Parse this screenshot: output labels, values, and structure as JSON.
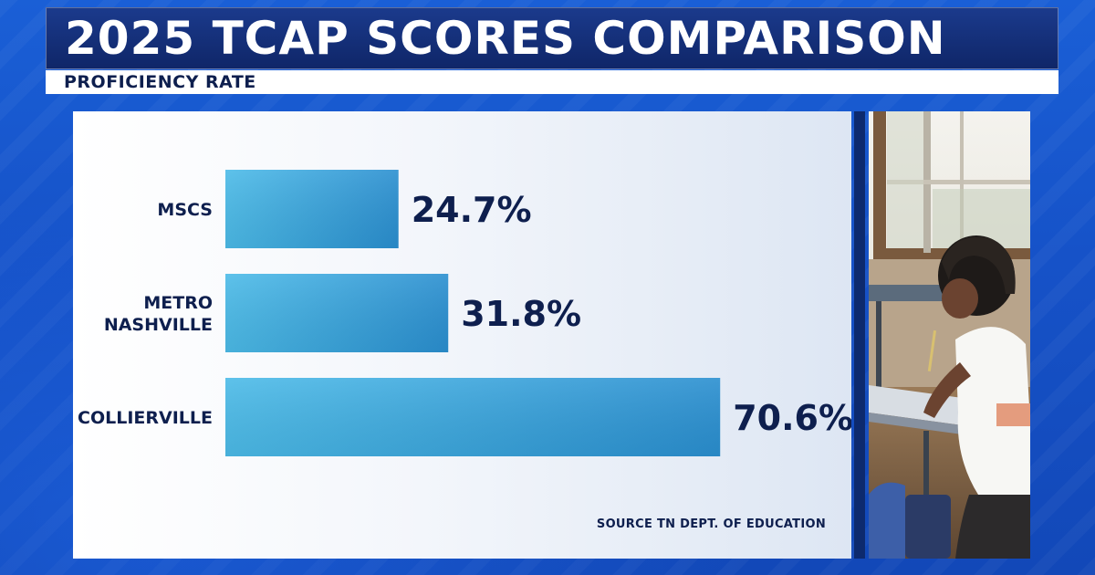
{
  "header": {
    "title": "2025 TCAP SCORES COMPARISON",
    "subtitle": "PROFICIENCY RATE"
  },
  "source": "SOURCE TN DEPT. OF EDUCATION",
  "colors": {
    "bar_start": "#4cbbe8",
    "bar_end": "#2a8fd0",
    "text_dark": "#0e1f4e",
    "title_bg": "#132f7a",
    "background": "#1652c8"
  },
  "chart_data": {
    "type": "bar",
    "orientation": "horizontal",
    "categories": [
      "MSCS",
      "METRO NASHVILLE",
      "COLLIERVILLE"
    ],
    "category_lines": [
      [
        "MSCS"
      ],
      [
        "METRO",
        "NASHVILLE"
      ],
      [
        "COLLIERVILLE"
      ]
    ],
    "values": [
      24.7,
      31.8,
      70.6
    ],
    "value_labels": [
      "24.7%",
      "31.8%",
      "70.6%"
    ],
    "title": "2025 TCAP SCORES COMPARISON",
    "subtitle": "PROFICIENCY RATE",
    "xlabel": "",
    "ylabel": "",
    "xlim": [
      0,
      100
    ],
    "grid": false,
    "legend": "none"
  },
  "photo": {
    "icon": "student-writing-photo"
  }
}
